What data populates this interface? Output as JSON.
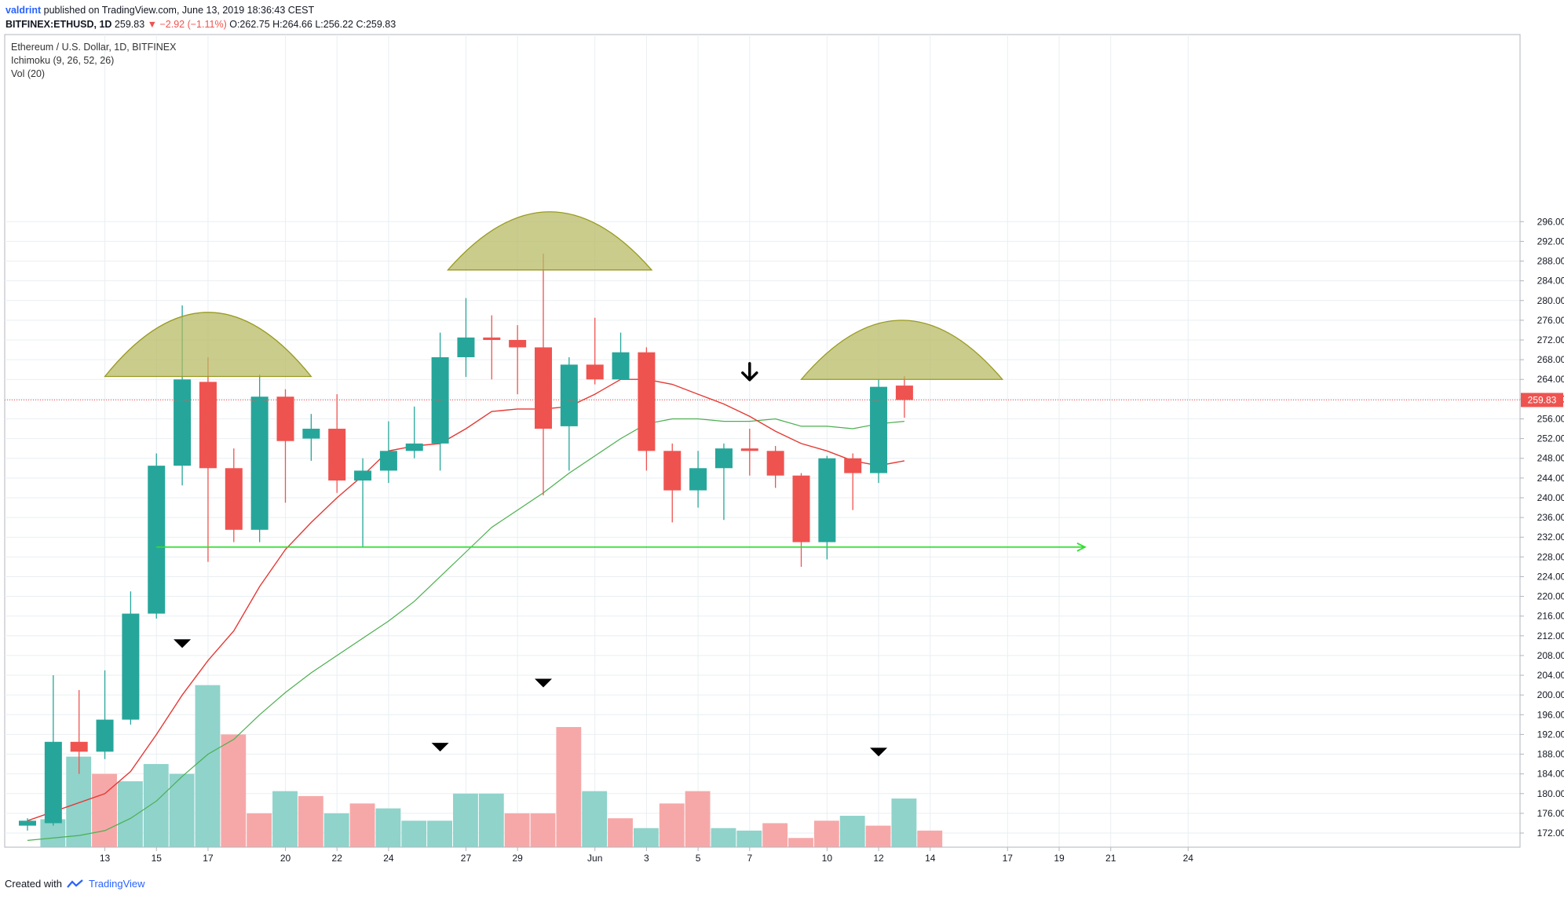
{
  "header": {
    "author": "valdrint",
    "published_text": "published on TradingView.com, June 13, 2019 18:36:43 CEST",
    "symbol": "BITFINEX:ETHUSD, 1D",
    "last": "259.83",
    "change": "▼ −2.92 (−1.11%)",
    "ohlc": "O:262.75 H:264.66 L:256.22 C:259.83"
  },
  "legend": {
    "title": "Ethereum / U.S. Dollar, 1D, BITFINEX",
    "indicator1": "Ichimoku (9, 26, 52, 26)",
    "indicator2": "Vol (20)"
  },
  "footer": {
    "created_with": "Created with",
    "brand": "TradingView"
  },
  "colors": {
    "up": "#26a69a",
    "down": "#ef5350",
    "vol_up": "#8fd3cb",
    "vol_down": "#f6a8a8",
    "conversion_line": "#e53935",
    "base_line": "#4caf50",
    "support_line": "#33dd33",
    "dome_fill": "#b5b960",
    "dome_stroke": "#999a20",
    "grid": "#e9eff2"
  },
  "chart_data": {
    "type": "candlestick",
    "y_axis_ticks": [
      "172.00",
      "176.00",
      "180.00",
      "184.00",
      "188.00",
      "192.00",
      "196.00",
      "200.00",
      "204.00",
      "208.00",
      "212.00",
      "216.00",
      "220.00",
      "224.00",
      "228.00",
      "232.00",
      "236.00",
      "240.00",
      "244.00",
      "248.00",
      "252.00",
      "256.00",
      "260.00",
      "264.00",
      "268.00",
      "272.00",
      "276.00",
      "280.00",
      "284.00",
      "288.00",
      "292.00",
      "296.00"
    ],
    "ylim": [
      170,
      298
    ],
    "last_price_label": "259.83",
    "x_ticks": [
      {
        "label": "13",
        "i": 3
      },
      {
        "label": "15",
        "i": 5
      },
      {
        "label": "17",
        "i": 7
      },
      {
        "label": "20",
        "i": 10
      },
      {
        "label": "22",
        "i": 12
      },
      {
        "label": "24",
        "i": 14
      },
      {
        "label": "27",
        "i": 17
      },
      {
        "label": "29",
        "i": 19
      },
      {
        "label": "Jun",
        "i": 22
      },
      {
        "label": "3",
        "i": 24
      },
      {
        "label": "5",
        "i": 26
      },
      {
        "label": "7",
        "i": 28
      },
      {
        "label": "10",
        "i": 31
      },
      {
        "label": "12",
        "i": 33
      },
      {
        "label": "14",
        "i": 35
      },
      {
        "label": "17",
        "i": 38
      },
      {
        "label": "19",
        "i": 40
      },
      {
        "label": "21",
        "i": 42
      },
      {
        "label": "24",
        "i": 45
      }
    ],
    "candles": [
      {
        "date": "2019-05-10",
        "o": 173.5,
        "h": 175.0,
        "l": 172.5,
        "c": 174.5
      },
      {
        "date": "2019-05-11",
        "o": 174.0,
        "h": 204.0,
        "l": 173.5,
        "c": 190.5
      },
      {
        "date": "2019-05-12",
        "o": 190.5,
        "h": 201.0,
        "l": 184.0,
        "c": 188.5
      },
      {
        "date": "2019-05-13",
        "o": 188.5,
        "h": 205.0,
        "l": 187.0,
        "c": 195.0
      },
      {
        "date": "2019-05-14",
        "o": 195.0,
        "h": 221.0,
        "l": 194.0,
        "c": 216.5
      },
      {
        "date": "2019-05-15",
        "o": 216.5,
        "h": 249.0,
        "l": 215.5,
        "c": 246.5
      },
      {
        "date": "2019-05-16",
        "o": 246.5,
        "h": 279.0,
        "l": 242.5,
        "c": 264.0
      },
      {
        "date": "2019-05-17",
        "o": 263.5,
        "h": 268.5,
        "l": 227.0,
        "c": 246.0
      },
      {
        "date": "2019-05-18",
        "o": 246.0,
        "h": 250.0,
        "l": 231.0,
        "c": 233.5
      },
      {
        "date": "2019-05-19",
        "o": 233.5,
        "h": 265.0,
        "l": 231.0,
        "c": 260.5
      },
      {
        "date": "2019-05-20",
        "o": 260.5,
        "h": 262.0,
        "l": 239.0,
        "c": 251.5
      },
      {
        "date": "2019-05-21",
        "o": 252.0,
        "h": 257.0,
        "l": 247.5,
        "c": 254.0
      },
      {
        "date": "2019-05-22",
        "o": 254.0,
        "h": 261.0,
        "l": 241.0,
        "c": 243.5
      },
      {
        "date": "2019-05-23",
        "o": 243.5,
        "h": 248.0,
        "l": 230.0,
        "c": 245.5
      },
      {
        "date": "2019-05-24",
        "o": 245.5,
        "h": 255.5,
        "l": 243.0,
        "c": 249.5
      },
      {
        "date": "2019-05-25",
        "o": 249.5,
        "h": 258.5,
        "l": 248.0,
        "c": 251.0
      },
      {
        "date": "2019-05-26",
        "o": 251.0,
        "h": 273.5,
        "l": 245.5,
        "c": 268.5
      },
      {
        "date": "2019-05-27",
        "o": 268.5,
        "h": 280.5,
        "l": 264.5,
        "c": 272.5
      },
      {
        "date": "2019-05-28",
        "o": 272.5,
        "h": 277.0,
        "l": 264.0,
        "c": 272.0
      },
      {
        "date": "2019-05-29",
        "o": 272.0,
        "h": 275.0,
        "l": 261.0,
        "c": 270.5
      },
      {
        "date": "2019-05-30",
        "o": 270.5,
        "h": 289.5,
        "l": 240.5,
        "c": 254.0
      },
      {
        "date": "2019-05-31",
        "o": 254.5,
        "h": 268.5,
        "l": 245.5,
        "c": 267.0
      },
      {
        "date": "2019-06-01",
        "o": 267.0,
        "h": 276.5,
        "l": 263.0,
        "c": 264.0
      },
      {
        "date": "2019-06-02",
        "o": 264.0,
        "h": 273.5,
        "l": 264.0,
        "c": 269.5
      },
      {
        "date": "2019-06-03",
        "o": 269.5,
        "h": 270.5,
        "l": 245.5,
        "c": 249.5
      },
      {
        "date": "2019-06-04",
        "o": 249.5,
        "h": 251.0,
        "l": 235.0,
        "c": 241.5
      },
      {
        "date": "2019-06-05",
        "o": 241.5,
        "h": 249.5,
        "l": 238.0,
        "c": 246.0
      },
      {
        "date": "2019-06-06",
        "o": 246.0,
        "h": 251.0,
        "l": 235.5,
        "c": 250.0
      },
      {
        "date": "2019-06-07",
        "o": 250.0,
        "h": 254.0,
        "l": 244.5,
        "c": 249.5
      },
      {
        "date": "2019-06-08",
        "o": 249.5,
        "h": 250.5,
        "l": 242.0,
        "c": 244.5
      },
      {
        "date": "2019-06-09",
        "o": 244.5,
        "h": 245.0,
        "l": 226.0,
        "c": 231.0
      },
      {
        "date": "2019-06-10",
        "o": 231.0,
        "h": 248.5,
        "l": 227.5,
        "c": 248.0
      },
      {
        "date": "2019-06-11",
        "o": 248.0,
        "h": 249.0,
        "l": 237.5,
        "c": 245.0
      },
      {
        "date": "2019-06-12",
        "o": 245.0,
        "h": 264.0,
        "l": 243.0,
        "c": 262.5
      },
      {
        "date": "2019-06-13",
        "o": 262.75,
        "h": 264.66,
        "l": 256.22,
        "c": 259.83
      }
    ],
    "volume": [
      {
        "v": 174.8,
        "up": true
      },
      {
        "v": 187.5,
        "up": true
      },
      {
        "v": 184.0,
        "up": false
      },
      {
        "v": 182.5,
        "up": true
      },
      {
        "v": 186.0,
        "up": true
      },
      {
        "v": 184.0,
        "up": true
      },
      {
        "v": 202.0,
        "up": true
      },
      {
        "v": 192.0,
        "up": false
      },
      {
        "v": 176.0,
        "up": false
      },
      {
        "v": 180.5,
        "up": true
      },
      {
        "v": 179.5,
        "up": false
      },
      {
        "v": 176.0,
        "up": true
      },
      {
        "v": 178.0,
        "up": false
      },
      {
        "v": 177.0,
        "up": true
      },
      {
        "v": 174.5,
        "up": true
      },
      {
        "v": 174.5,
        "up": true
      },
      {
        "v": 180.0,
        "up": true
      },
      {
        "v": 180.0,
        "up": true
      },
      {
        "v": 176.0,
        "up": false
      },
      {
        "v": 176.0,
        "up": false
      },
      {
        "v": 193.5,
        "up": false
      },
      {
        "v": 180.5,
        "up": true
      },
      {
        "v": 175.0,
        "up": false
      },
      {
        "v": 173.0,
        "up": true
      },
      {
        "v": 178.0,
        "up": false
      },
      {
        "v": 180.5,
        "up": false
      },
      {
        "v": 173.0,
        "up": true
      },
      {
        "v": 172.5,
        "up": true
      },
      {
        "v": 174.0,
        "up": false
      },
      {
        "v": 171.0,
        "up": false
      },
      {
        "v": 174.5,
        "up": false
      },
      {
        "v": 175.5,
        "up": true
      },
      {
        "v": 173.5,
        "up": false
      },
      {
        "v": 179.0,
        "up": true
      },
      {
        "v": 172.5,
        "up": false
      }
    ],
    "conversion_line": [
      [
        0,
        174.5
      ],
      [
        3,
        180.0
      ],
      [
        4,
        184.5
      ],
      [
        5,
        192.0
      ],
      [
        6,
        200.0
      ],
      [
        7,
        207.0
      ],
      [
        8,
        213.0
      ],
      [
        9,
        222.0
      ],
      [
        10,
        229.5
      ],
      [
        11,
        235.0
      ],
      [
        12,
        240.0
      ],
      [
        13,
        244.5
      ],
      [
        14,
        249.5
      ],
      [
        15,
        250.5
      ],
      [
        16,
        251.0
      ],
      [
        17,
        254.0
      ],
      [
        18,
        257.5
      ],
      [
        19,
        258.0
      ],
      [
        20,
        258.0
      ],
      [
        21,
        258.5
      ],
      [
        22,
        261.0
      ],
      [
        23,
        264.0
      ],
      [
        24,
        264.0
      ],
      [
        25,
        263.0
      ],
      [
        26,
        261.0
      ],
      [
        27,
        259.0
      ],
      [
        28,
        256.5
      ],
      [
        29,
        253.5
      ],
      [
        30,
        251.0
      ],
      [
        31,
        249.5
      ],
      [
        32,
        247.5
      ],
      [
        33,
        246.5
      ],
      [
        34,
        247.5
      ]
    ],
    "base_line": [
      [
        0,
        170.5
      ],
      [
        2,
        171.5
      ],
      [
        3,
        172.5
      ],
      [
        4,
        175.0
      ],
      [
        5,
        178.5
      ],
      [
        6,
        183.5
      ],
      [
        7,
        188.0
      ],
      [
        8,
        191.0
      ],
      [
        9,
        196.0
      ],
      [
        10,
        200.5
      ],
      [
        11,
        204.5
      ],
      [
        12,
        208.0
      ],
      [
        13,
        211.5
      ],
      [
        14,
        215.0
      ],
      [
        15,
        219.0
      ],
      [
        16,
        224.0
      ],
      [
        17,
        229.0
      ],
      [
        18,
        234.0
      ],
      [
        19,
        237.5
      ],
      [
        20,
        241.0
      ],
      [
        21,
        245.0
      ],
      [
        22,
        248.5
      ],
      [
        23,
        252.0
      ],
      [
        24,
        255.0
      ],
      [
        25,
        256.0
      ],
      [
        26,
        256.0
      ],
      [
        27,
        255.5
      ],
      [
        28,
        255.5
      ],
      [
        29,
        256.0
      ],
      [
        30,
        254.5
      ],
      [
        31,
        254.5
      ],
      [
        32,
        254.0
      ],
      [
        33,
        255.0
      ],
      [
        34,
        255.5
      ]
    ],
    "support_line": {
      "price": 230.0,
      "from_i": 5,
      "to_i": 41
    },
    "domes": [
      {
        "from_i": 3.0,
        "to_i": 11.0,
        "base": 264.6,
        "top": 277.6
      },
      {
        "from_i": 16.3,
        "to_i": 24.2,
        "base": 286.2,
        "top": 298.0
      },
      {
        "from_i": 30.0,
        "to_i": 37.8,
        "base": 264.0,
        "top": 276.0
      }
    ],
    "markers": [
      {
        "i": 6,
        "price": 210.5,
        "type": "down-triangle"
      },
      {
        "i": 16,
        "price": 189.5,
        "type": "down-triangle"
      },
      {
        "i": 20,
        "price": 202.5,
        "type": "down-triangle"
      },
      {
        "i": 28,
        "price": 265.5,
        "type": "down-arrow"
      },
      {
        "i": 33,
        "price": 188.5,
        "type": "down-triangle"
      }
    ]
  }
}
